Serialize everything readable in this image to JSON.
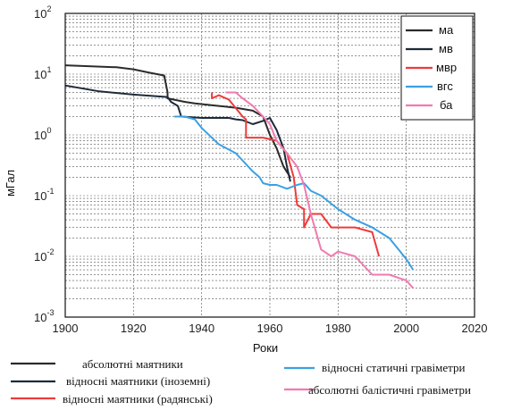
{
  "chart_data": {
    "type": "line",
    "title": "",
    "xlabel": "Роки",
    "ylabel": "мГал",
    "xlim": [
      1900,
      2020
    ],
    "ylim_log10": [
      -3,
      2
    ],
    "y_scale": "log",
    "grid": true,
    "legend_inner": "top-right",
    "legend_outer": "bottom",
    "x_ticks": [
      "1900",
      "1920",
      "1940",
      "1960",
      "1980",
      "2000",
      "2020"
    ],
    "y_ticks": [
      {
        "base": "10",
        "exp": "2",
        "v": 2
      },
      {
        "base": "10",
        "exp": "1",
        "v": 1
      },
      {
        "base": "10",
        "exp": "0",
        "v": 0
      },
      {
        "base": "10",
        "exp": "-1",
        "v": -1
      },
      {
        "base": "10",
        "exp": "-2",
        "v": -2
      },
      {
        "base": "10",
        "exp": "-3",
        "v": -3
      }
    ],
    "series": [
      {
        "key": "ma",
        "name": "ма",
        "color": "#2b2b2b",
        "x": [
          1900,
          1915,
          1920,
          1925,
          1929,
          1930,
          1930,
          1935,
          1938,
          1945,
          1950,
          1955,
          1958,
          1960,
          1962,
          1964,
          1966
        ],
        "y": [
          14.0,
          13.0,
          12.0,
          10.5,
          9.5,
          5.0,
          4.0,
          3.5,
          3.3,
          3.0,
          2.8,
          2.5,
          2.0,
          1.0,
          0.6,
          0.3,
          0.2
        ]
      },
      {
        "key": "mv",
        "name": "мв",
        "color": "#1d2a3a",
        "x": [
          1900,
          1910,
          1920,
          1925,
          1930,
          1931,
          1933,
          1934,
          1940,
          1948,
          1950,
          1952,
          1955,
          1958,
          1960,
          1962,
          1964,
          1965,
          1966
        ],
        "y": [
          6.5,
          5.2,
          4.6,
          4.4,
          4.2,
          3.5,
          3.0,
          2.0,
          1.9,
          1.9,
          1.8,
          1.75,
          1.5,
          1.7,
          1.9,
          1.2,
          0.6,
          0.3,
          0.17
        ]
      },
      {
        "key": "mvr",
        "name": "мвр",
        "color": "#ee3b3b",
        "x": [
          1943,
          1943,
          1945,
          1948,
          1952,
          1953,
          1953,
          1958,
          1962,
          1965,
          1967,
          1968,
          1970,
          1970,
          1972,
          1975,
          1978,
          1980,
          1985,
          1990,
          1992
        ],
        "y": [
          5.0,
          4.0,
          4.5,
          3.8,
          2.0,
          1.8,
          0.9,
          0.9,
          0.8,
          0.5,
          0.2,
          0.07,
          0.06,
          0.03,
          0.05,
          0.05,
          0.03,
          0.03,
          0.03,
          0.025,
          0.01
        ]
      },
      {
        "key": "vgs",
        "name": "вгс",
        "color": "#3aa0e4",
        "x": [
          1932,
          1935,
          1938,
          1940,
          1945,
          1950,
          1955,
          1957,
          1958,
          1960,
          1962,
          1965,
          1968,
          1970,
          1972,
          1975,
          1980,
          1985,
          1990,
          1995,
          2000,
          2002
        ],
        "y": [
          2.0,
          2.0,
          1.8,
          1.3,
          0.7,
          0.5,
          0.25,
          0.2,
          0.16,
          0.15,
          0.15,
          0.13,
          0.15,
          0.16,
          0.12,
          0.1,
          0.06,
          0.04,
          0.03,
          0.02,
          0.009,
          0.006
        ]
      },
      {
        "key": "ba",
        "name": "ба",
        "color": "#f07ab0",
        "x": [
          1947,
          1950,
          1952,
          1955,
          1958,
          1960,
          1962,
          1965,
          1968,
          1970,
          1972,
          1975,
          1978,
          1980,
          1985,
          1990,
          1992,
          1995,
          2000,
          2002
        ],
        "y": [
          5.0,
          5.0,
          4.0,
          3.0,
          2.0,
          1.5,
          0.8,
          0.5,
          0.3,
          0.15,
          0.05,
          0.013,
          0.01,
          0.012,
          0.01,
          0.005,
          0.005,
          0.005,
          0.004,
          0.003
        ]
      }
    ]
  },
  "legend_outer": {
    "ma": "абсолютні маятники",
    "mv": "відносні маятники (іноземні)",
    "mvr": "відносні маятники (радянські)",
    "vgs": "відносні статичні гравіметри",
    "ba": "абсолютні балістичні гравіметри"
  }
}
